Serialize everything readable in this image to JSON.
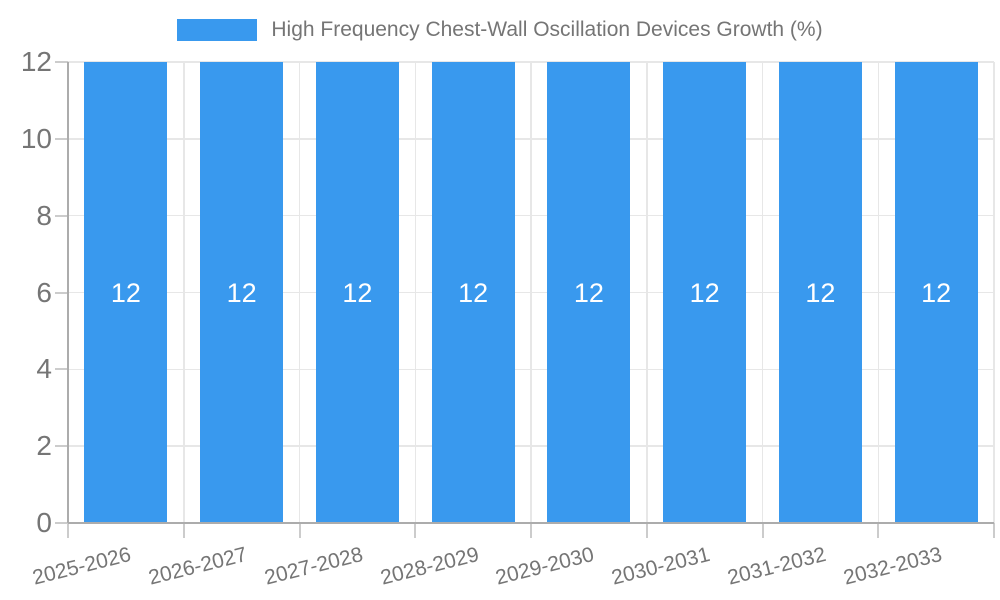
{
  "chart_data": {
    "type": "bar",
    "title": "High Frequency Chest-Wall Oscillation Devices Growth (%)",
    "categories": [
      "2025-2026",
      "2026-2027",
      "2027-2028",
      "2028-2029",
      "2029-2030",
      "2030-2031",
      "2031-2032",
      "2032-2033"
    ],
    "values": [
      12,
      12,
      12,
      12,
      12,
      12,
      12,
      12
    ],
    "bar_labels": [
      "12",
      "12",
      "12",
      "12",
      "12",
      "12",
      "12",
      "12"
    ],
    "xlabel": "",
    "ylabel": "",
    "ylim": [
      0,
      12
    ],
    "yticks": [
      0,
      2,
      4,
      6,
      8,
      10,
      12
    ],
    "grid": true,
    "legend_position": "top",
    "colors": {
      "bar": "#3999EE",
      "bar_label": "#FFFFFF",
      "text": "#757575",
      "grid_line": "#E7E7E7",
      "axis_line": "#ACACAC",
      "tick_mark": "#CCCCCC",
      "background": "#FFFFFF"
    }
  }
}
